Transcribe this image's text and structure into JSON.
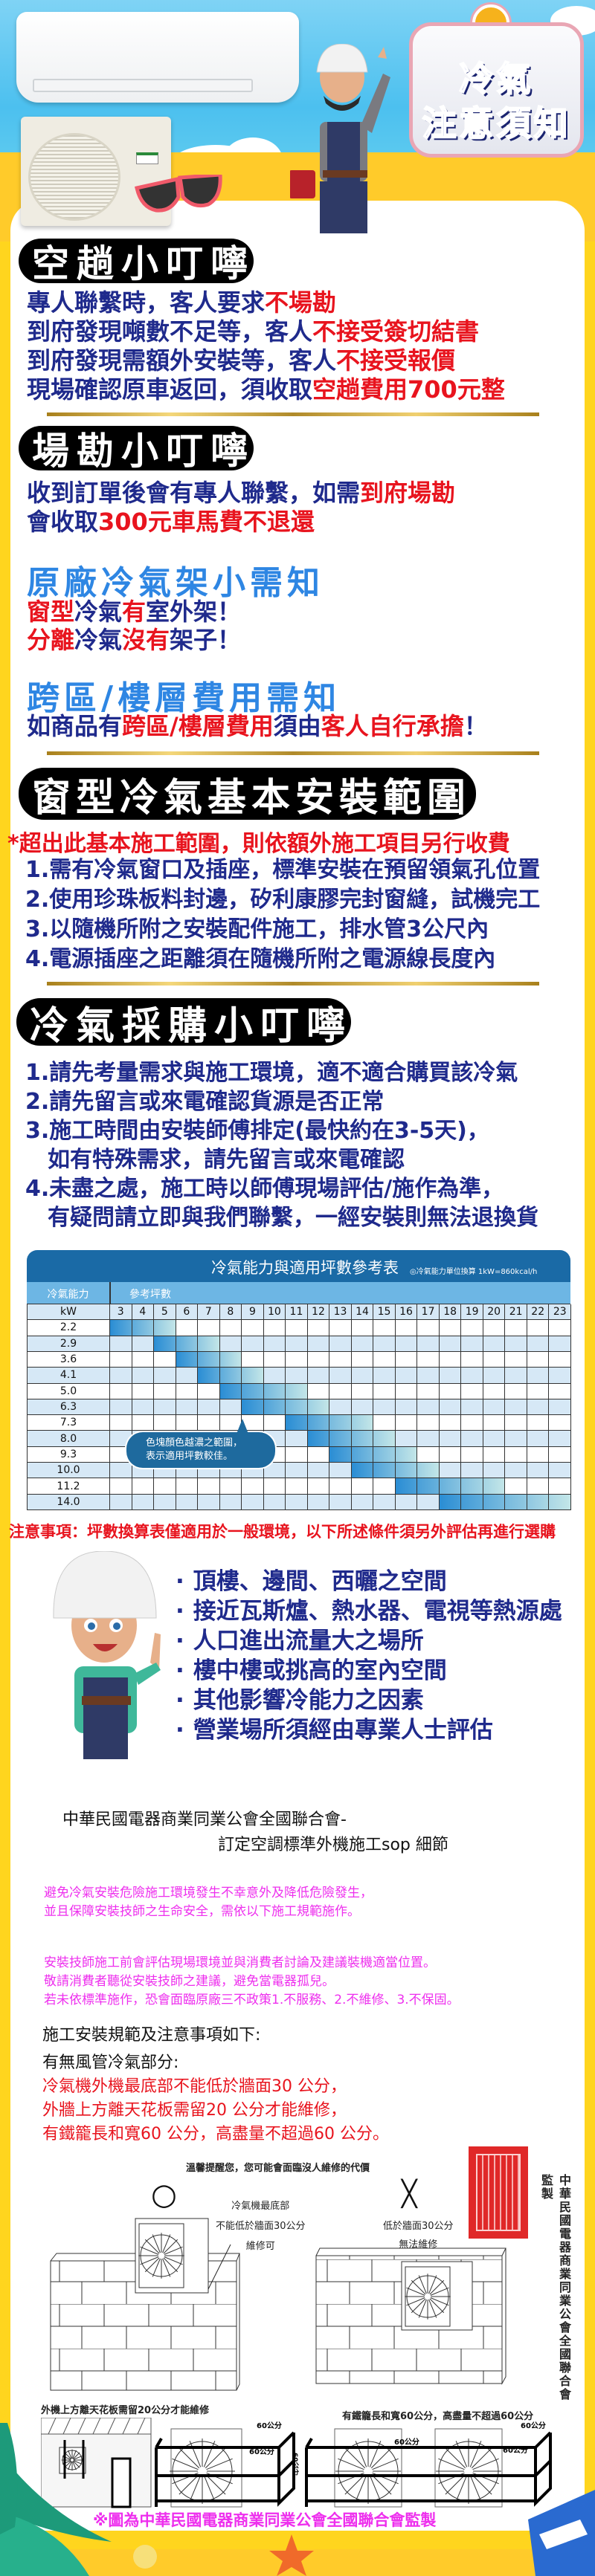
{
  "colors": {
    "navy": "#1F2A8C",
    "red": "#E8141E",
    "blue": "#2E86E3",
    "magenta": "#EE2FEE",
    "border_yellow": "#FFD51E",
    "table_header": "#1A6AA6",
    "table_subheader": "#6DB6E4",
    "table_stripe": "#D6E8F6",
    "highlight_dark": "#2A8DD4",
    "highlight_light": "#C3E6E8"
  },
  "header": {
    "title_line1": "冷氣",
    "title_line2": "注意須知",
    "icons": [
      "bell-icon",
      "air-conditioner-indoor-unit",
      "air-conditioner-outdoor-unit",
      "sunglasses-icon",
      "worker-illustration"
    ]
  },
  "empty_trip": {
    "heading": "空趟小叮嚀",
    "lines": [
      [
        {
          "t": "專人聯繫時，客人要求",
          "c": "navy"
        },
        {
          "t": "不場勘",
          "c": "red"
        }
      ],
      [
        {
          "t": "到府發現噸數不足等，客人",
          "c": "navy"
        },
        {
          "t": "不接受簽切結書",
          "c": "red"
        }
      ],
      [
        {
          "t": "到府發現需額外安裝等，客人",
          "c": "navy"
        },
        {
          "t": "不接受報價",
          "c": "red"
        }
      ],
      [
        {
          "t": "現場確認原車返回，須收取",
          "c": "navy"
        },
        {
          "t": "空趟費用700元整",
          "c": "red"
        }
      ]
    ]
  },
  "site_survey": {
    "heading": "場勘小叮嚀",
    "lines": [
      [
        {
          "t": "收到訂單後會有專人聯繫，如需",
          "c": "navy"
        },
        {
          "t": "到府場勘",
          "c": "red"
        }
      ],
      [
        {
          "t": "會收取",
          "c": "navy"
        },
        {
          "t": "300元車馬費不退還",
          "c": "red"
        }
      ]
    ]
  },
  "bracket": {
    "heading": "原廠冷氣架小需知",
    "lines": [
      [
        {
          "t": "窗型",
          "c": "red"
        },
        {
          "t": "冷氣",
          "c": "navy"
        },
        {
          "t": "有",
          "c": "red"
        },
        {
          "t": "室外架！",
          "c": "navy"
        }
      ],
      [
        {
          "t": "分離",
          "c": "red"
        },
        {
          "t": "冷氣",
          "c": "navy"
        },
        {
          "t": "沒有",
          "c": "red"
        },
        {
          "t": "架子！",
          "c": "navy"
        }
      ]
    ]
  },
  "cross_area": {
    "heading": "跨區/樓層費用需知",
    "lines": [
      [
        {
          "t": "如商品有",
          "c": "navy"
        },
        {
          "t": "跨區/樓層費用",
          "c": "red"
        },
        {
          "t": "須由",
          "c": "navy"
        },
        {
          "t": "客人自行承擔",
          "c": "red"
        },
        {
          "t": "！",
          "c": "navy"
        }
      ]
    ]
  },
  "window_install": {
    "heading": "窗型冷氣基本安裝範圍",
    "note": "*超出此基本施工範圍，則依額外施工項目另行收費",
    "items": [
      "1.需有冷氣窗口及插座，標準安裝在預留領氣孔位置",
      "2.使用珍珠板料封邊，矽利康膠完封窗縫，試機完工",
      "3.以隨機所附之安裝配件施工，排水管3公尺內",
      "4.電源插座之距離須在隨機所附之電源線長度內"
    ]
  },
  "purchase": {
    "heading": "冷氣採購小叮嚀",
    "items": [
      "1.請先考量需求與施工環境，適不適合購買該冷氣",
      "2.請先留言或來電確認貨源是否正常",
      "3.施工時間由安裝師傅排定(最快約在3-5天)，",
      "如有特殊需求，請先留言或來電確認",
      "4.未盡之處，施工時以師傅現場評估/施作為準，",
      "有疑問請立即與我們聯繫，一經安裝則無法退換貨"
    ]
  },
  "capacity_table": {
    "title": "冷氣能力與適用坪數參考表",
    "note": "◎冷氣能力單位換算  1kW=860kcal/h",
    "capacity_header": "冷氣能力",
    "area_header": "參考坪數",
    "unit": "kW",
    "columns": [
      "3",
      "4",
      "5",
      "6",
      "7",
      "8",
      "9",
      "10",
      "11",
      "12",
      "13",
      "14",
      "15",
      "16",
      "17",
      "18",
      "19",
      "20",
      "21",
      "22",
      "23"
    ],
    "rows": [
      {
        "kw": "2.2",
        "range": [
          3,
          5
        ]
      },
      {
        "kw": "2.9",
        "range": [
          5,
          7
        ]
      },
      {
        "kw": "3.6",
        "range": [
          6,
          8
        ]
      },
      {
        "kw": "4.1",
        "range": [
          7,
          9
        ]
      },
      {
        "kw": "5.0",
        "range": [
          8,
          11
        ]
      },
      {
        "kw": "6.3",
        "range": [
          9,
          12
        ]
      },
      {
        "kw": "7.3",
        "range": [
          11,
          14
        ]
      },
      {
        "kw": "8.0",
        "range": [
          12,
          15
        ]
      },
      {
        "kw": "9.3",
        "range": [
          13,
          16
        ]
      },
      {
        "kw": "10.0",
        "range": [
          14,
          17
        ]
      },
      {
        "kw": "11.2",
        "range": [
          16,
          20
        ]
      },
      {
        "kw": "14.0",
        "range": [
          18,
          23
        ]
      }
    ],
    "callout": [
      "色塊顏色越濃之範圍，",
      "表示適用坪數較佳。"
    ]
  },
  "caution": "注意事項：坪數換算表僅適用於一般環境，以下所述條件須另外評估再進行選購",
  "factors": {
    "bullet": "·",
    "items": [
      "頂樓、邊間、西曬之空間",
      "接近瓦斯爐、熱水器、電視等熱源處",
      "人口進出流量大之場所",
      "樓中樓或挑高的室內空間",
      "其他影響冷能力之因素",
      "營業場所須經由專業人士評估"
    ]
  },
  "sop": {
    "title_line1": "中華民國電器商業同業公會全國聯合會-",
    "title_line2": "訂定空調標準外機施工sop 細節",
    "para1": [
      "避免冷氣安裝危險施工環境發生不幸意外及降低危險發生，",
      "並且保障安裝技師之生命安全，需依以下施工規範施作。"
    ],
    "para2": [
      "安裝技師施工前會評估現場環境並與消費者討論及建議裝機適當位置。",
      "敬請消費者聽從安裝技師之建議，避免當電器孤兒。",
      "若未依標準施作，恐會面臨原廠三不政策1.不服務、2.不維修、3.不保固。"
    ],
    "spec_heading": "施工安裝規範及注意事項如下:",
    "duct_heading": "有無風管冷氣部分:",
    "rules": [
      "冷氣機外機最底部不能低於牆面30 公分，",
      "外牆上方離天花板需留20 公分才能維修，",
      "有鐵籠長和寬60 公分，高盡量不超過60 公分。"
    ]
  },
  "diagram": {
    "caption": "溫馨提醒您，您可能會面臨沒人維修的代價",
    "ok_mark": "○",
    "ok_text": [
      "冷氣機最底部",
      "不能低於牆面30公分",
      "維修可"
    ],
    "ng_mark": "╳",
    "ng_text": [
      "低於牆面30公分",
      "無法維修"
    ],
    "vertical_text": "中華民國電器商業同業公會全國聯合會監製",
    "left_caption": "外機上方離天花板需留20公分才能維修",
    "right_caption": "有鐵籠長和寬60公分，高盡量不超過60公分",
    "dim_label": "60公分",
    "dim_vertical": "60公分"
  },
  "footer_note": "※圖為中華民國電器商業同業公會全國聯合會監製"
}
